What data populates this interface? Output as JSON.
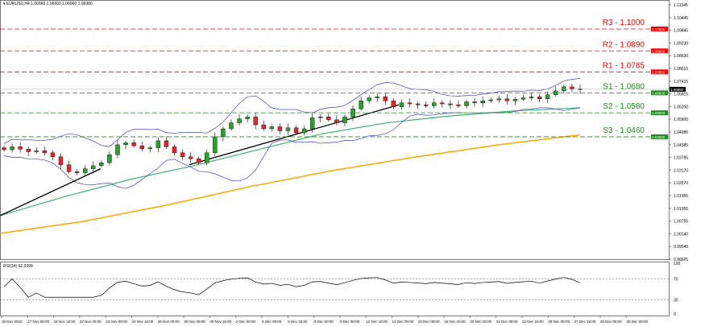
{
  "header": {
    "symbol": "EURUSD,H4",
    "ohlc": "1.06960 1.06992 1.06960 1.06980"
  },
  "rsi_label": "RSI(14) 62.3399",
  "colors": {
    "resistance": "#ff0000",
    "support": "#228b22",
    "ma_fast": "#3cb371",
    "ma_slow": "#ffa500",
    "bands": "#4040c0",
    "rsi": "#000000"
  },
  "chart_data": {
    "type": "candlestick",
    "symbol": "EURUSD",
    "timeframe": "H4",
    "ylim": [
      0.9847,
      1.1145
    ],
    "y_ticks": [
      "1.11045",
      "1.10445",
      "1.09845",
      "1.09230",
      "1.08630",
      "1.08015",
      "1.07415",
      "1.06815",
      "1.06200",
      "1.05600",
      "1.04985",
      "1.04385",
      "1.03785",
      "1.03170",
      "1.02570",
      "1.01955",
      "1.01355",
      "1.00755",
      "1.00140",
      "0.99540",
      "0.98925"
    ],
    "x_ticks": [
      "16 Nov 2022",
      "17 Nov 08:00",
      "18 Nov 16:00",
      "22 Nov 00:00",
      "23 Nov 08:00",
      "24 Nov 16:00",
      "28 Nov 00:00",
      "29 Nov 08:00",
      "30 Nov 16:00",
      "2 Dec 00:00",
      "5 Dec 08:00",
      "6 Dec 16:00",
      "8 Dec 00:00",
      "9 Dec 08:00",
      "12 Dec 16:00",
      "14 Dec 00:00",
      "15 Dec 08:00",
      "16 Dec 16:00",
      "20 Dec 00:00",
      "21 Dec 08:00",
      "22 Dec 16:00",
      "26 Dec 08:00",
      "27 Dec 16:00",
      "29 Dec 00:00",
      "30 Dec 08:00"
    ],
    "closes": [
      1.0395,
      1.041,
      1.0398,
      1.0385,
      1.039,
      1.038,
      1.036,
      1.032,
      1.0285,
      1.028,
      1.03,
      1.0315,
      1.033,
      1.037,
      1.042,
      1.043,
      1.0415,
      1.04,
      1.0405,
      1.044,
      1.041,
      1.038,
      1.036,
      1.035,
      1.033,
      1.038,
      1.046,
      1.05,
      1.053,
      1.055,
      1.056,
      1.052,
      1.05,
      1.051,
      1.049,
      1.0505,
      1.048,
      1.05,
      1.0555,
      1.056,
      1.0545,
      1.053,
      1.056,
      1.06,
      1.064,
      1.0655,
      1.066,
      1.064,
      1.061,
      1.063,
      1.0625,
      1.062,
      1.0615,
      1.063,
      1.0625,
      1.062,
      1.0615,
      1.0635,
      1.063,
      1.064,
      1.0645,
      1.065,
      1.064,
      1.0648,
      1.0655,
      1.066,
      1.065,
      1.067,
      1.069,
      1.071,
      1.07,
      1.0698
    ],
    "ma_fast": [
      1.0065,
      1.016,
      1.0245,
      1.0315,
      1.0395,
      1.0475,
      1.053,
      1.0565,
      1.059,
      1.0605
    ],
    "ma_slow": [
      0.9976,
      1.0036,
      1.0117,
      1.0209,
      1.029,
      1.0358,
      1.0419,
      1.047
    ],
    "trendlines": [
      {
        "from": 1.0065,
        "to": 1.03
      },
      {
        "from": 1.032,
        "to": 1.062
      }
    ],
    "levels": [
      {
        "label": "R3 - 1.1000",
        "price": 1.1,
        "kind": "resistance",
        "tag": "1.10000"
      },
      {
        "label": "R2 - 1.0890",
        "price": 1.089,
        "kind": "resistance",
        "tag": "1.08900"
      },
      {
        "label": "R1 - 1.0785",
        "price": 1.0785,
        "kind": "resistance",
        "tag": "1.07850"
      },
      {
        "label": "S1 - 1.0680",
        "price": 1.068,
        "kind": "support",
        "tag": "1.06800"
      },
      {
        "label": "S2 - 1.0580",
        "price": 1.058,
        "kind": "support",
        "tag": "1.05800"
      },
      {
        "label": "S3 - 1.0460",
        "price": 1.046,
        "kind": "support",
        "tag": "1.04600"
      }
    ],
    "current_price": "1.06980",
    "rsi": {
      "period": 14,
      "value": 62.3399,
      "levels": [
        70,
        30
      ],
      "ticks": [
        "100",
        "70",
        "30",
        "0"
      ]
    }
  }
}
